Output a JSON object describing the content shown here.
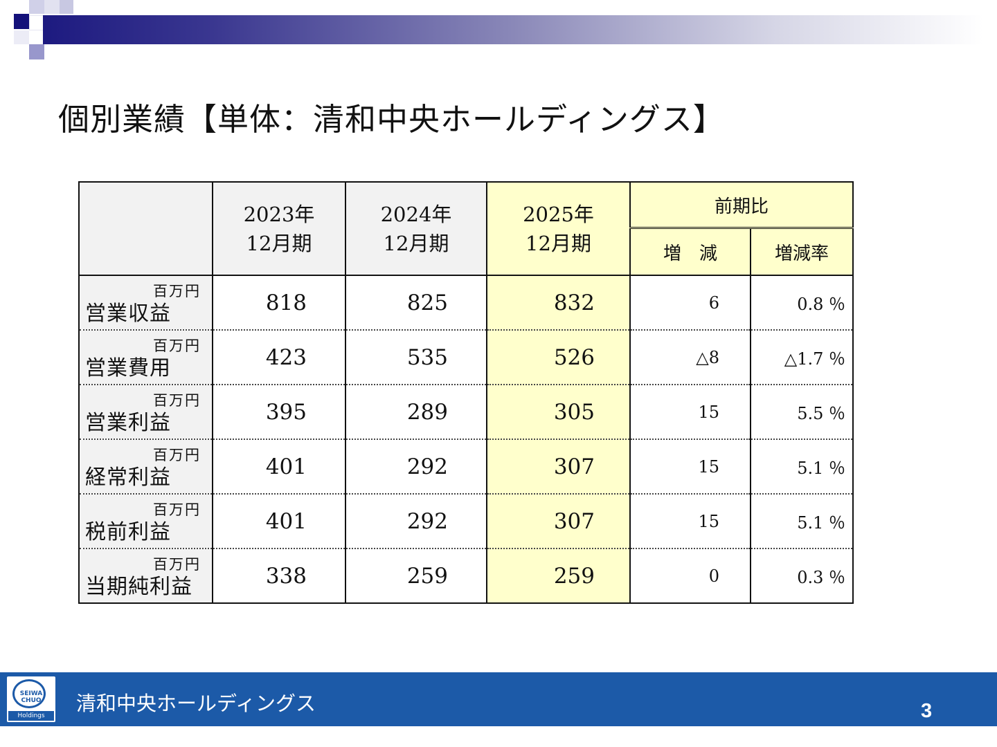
{
  "title": "個別業績【単体：清和中央ホールディングス】",
  "table": {
    "headers": {
      "years": [
        {
          "year": "2023年",
          "period": "12月期"
        },
        {
          "year": "2024年",
          "period": "12月期"
        },
        {
          "year": "2025年",
          "period": "12月期"
        }
      ],
      "comparison": "前期比",
      "diff": "増　減",
      "rate": "増減率"
    },
    "unit": "百万円",
    "rows": [
      {
        "name": "営業収益",
        "y2023": "818",
        "y2024": "825",
        "y2025": "832",
        "diff": "6",
        "rate": "0.8 ％"
      },
      {
        "name": "営業費用",
        "y2023": "423",
        "y2024": "535",
        "y2025": "526",
        "diff": "△8",
        "rate": "△1.7 ％"
      },
      {
        "name": "営業利益",
        "y2023": "395",
        "y2024": "289",
        "y2025": "305",
        "diff": "15",
        "rate": "5.5 ％"
      },
      {
        "name": "経常利益",
        "y2023": "401",
        "y2024": "292",
        "y2025": "307",
        "diff": "15",
        "rate": "5.1 ％"
      },
      {
        "name": "税前利益",
        "y2023": "401",
        "y2024": "292",
        "y2025": "307",
        "diff": "15",
        "rate": "5.1 ％"
      },
      {
        "name": "当期純利益",
        "y2023": "338",
        "y2024": "259",
        "y2025": "259",
        "diff": "0",
        "rate": "0.3 ％"
      }
    ]
  },
  "footer": {
    "logo_line1": "SEIWA",
    "logo_line2": "CHUO",
    "logo_sub": "Holdings",
    "company": "清和中央ホールディングス",
    "page_number": "3"
  },
  "colors": {
    "footer_bg": "#1c5aa8",
    "highlight": "#ffffcc",
    "label_bg": "#f2f2f2",
    "top_bar_start": "#1d1a80"
  }
}
